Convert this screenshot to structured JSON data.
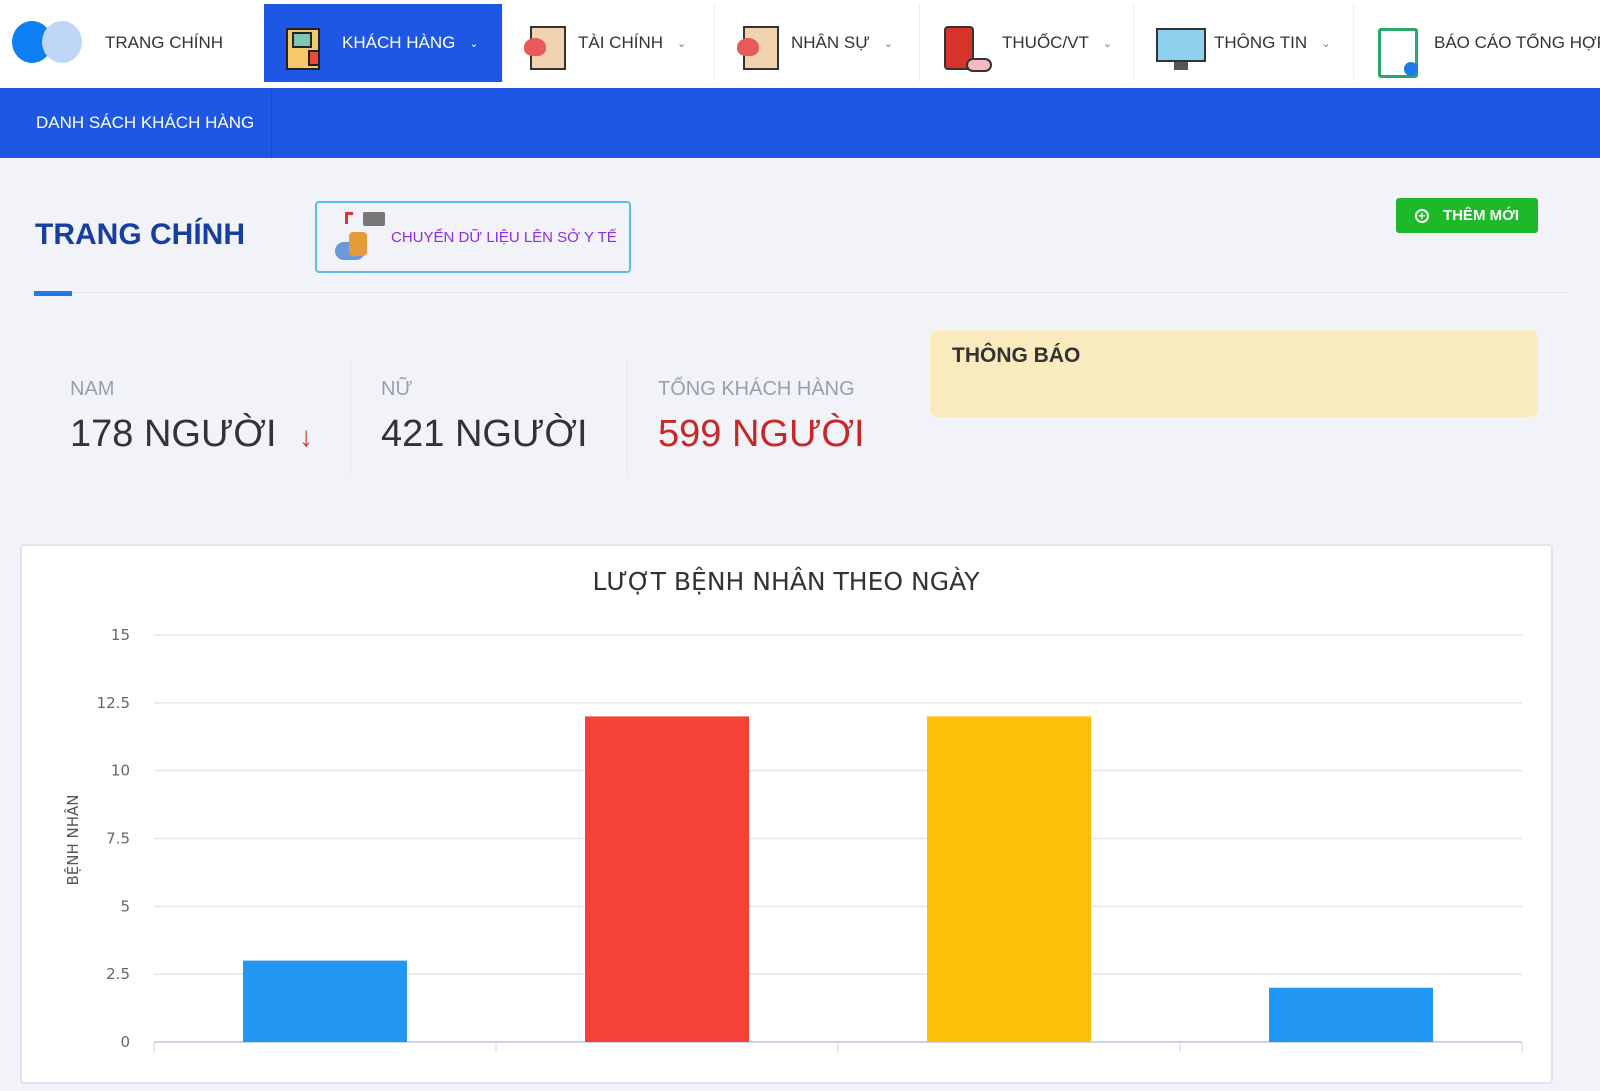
{
  "nav": {
    "home": "TRANG CHÍNH",
    "items": [
      {
        "label": "KHÁCH HÀNG",
        "icon": "patient-record-icon",
        "active": true
      },
      {
        "label": "TÀI CHÍNH",
        "icon": "health-clipboard-icon"
      },
      {
        "label": "NHÂN SỰ",
        "icon": "health-clipboard-icon"
      },
      {
        "label": "THUỐC/VT",
        "icon": "medicine-icon"
      },
      {
        "label": "THÔNG TIN",
        "icon": "doctor-monitor-icon"
      },
      {
        "label": "BÁO CÁO TỔNG HỢP",
        "icon": "report-clipboard-icon"
      }
    ]
  },
  "subnav": {
    "item": "DANH SÁCH KHÁCH HÀNG"
  },
  "page": {
    "title": "TRANG CHÍNH",
    "sync_label": "CHUYỂN DỮ LIỆU LÊN SỞ Y TẾ",
    "add_label": "THÊM MỚI"
  },
  "stats": [
    {
      "label": "NAM",
      "value": "178 NGƯỜI",
      "trend": "↓"
    },
    {
      "label": "NỮ",
      "value": "421 NGƯỜI"
    },
    {
      "label": "TỔNG KHÁCH HÀNG",
      "value": "599 NGƯỜI"
    }
  ],
  "notice": {
    "title": "THÔNG BÁO"
  },
  "colors": {
    "primary": "#1e57e3",
    "success": "#1eb92b",
    "danger": "#c62828"
  },
  "chart_data": {
    "type": "bar",
    "title": "LƯỢT BỆNH NHÂN THEO NGÀY",
    "ylabel": "BỆNH NHÂN",
    "xlabel": "",
    "ylim": [
      0,
      15
    ],
    "yticks": [
      "0",
      "2.5",
      "5",
      "7.5",
      "10",
      "12.5",
      "15"
    ],
    "grid": true,
    "values": [
      3,
      12,
      12,
      2
    ],
    "colors": [
      "#2196f3",
      "#f44336",
      "#ffc107",
      "#2196f3"
    ]
  }
}
